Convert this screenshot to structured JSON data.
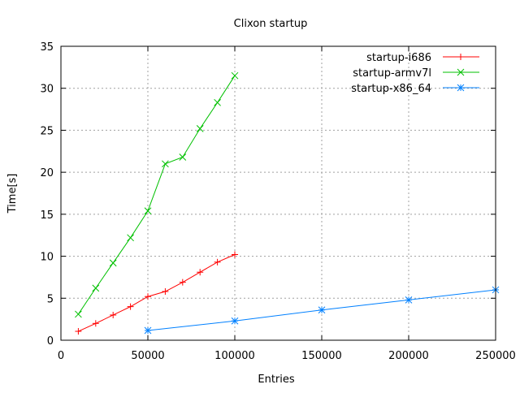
{
  "chart_data": {
    "type": "line",
    "title": "Clixon startup",
    "xlabel": "Entries",
    "ylabel": "Time[s]",
    "xlim": [
      0,
      250000
    ],
    "ylim": [
      0,
      35
    ],
    "xticks": [
      0,
      50000,
      100000,
      150000,
      200000,
      250000
    ],
    "yticks": [
      0,
      5,
      10,
      15,
      20,
      25,
      30,
      35
    ],
    "grid": true,
    "legend": "top-right",
    "series": [
      {
        "name": "startup-i686",
        "color": "#ff0000",
        "marker": "plus",
        "x": [
          10000,
          20000,
          30000,
          40000,
          50000,
          60000,
          70000,
          80000,
          90000,
          100000
        ],
        "y": [
          1.06,
          2.0,
          3.0,
          4.0,
          5.2,
          5.8,
          6.9,
          8.1,
          9.3,
          10.2
        ]
      },
      {
        "name": "startup-armv7l",
        "color": "#00c000",
        "marker": "cross",
        "x": [
          10000,
          20000,
          30000,
          40000,
          50000,
          60000,
          70000,
          80000,
          90000,
          100000
        ],
        "y": [
          3.1,
          6.2,
          9.2,
          12.2,
          15.4,
          21.0,
          21.8,
          25.2,
          28.3,
          31.5
        ]
      },
      {
        "name": "startup-x86_64",
        "color": "#0080ff",
        "marker": "star",
        "x": [
          50000,
          100000,
          150000,
          200000,
          250000
        ],
        "y": [
          1.16,
          2.3,
          3.6,
          4.8,
          6.0
        ]
      }
    ]
  }
}
